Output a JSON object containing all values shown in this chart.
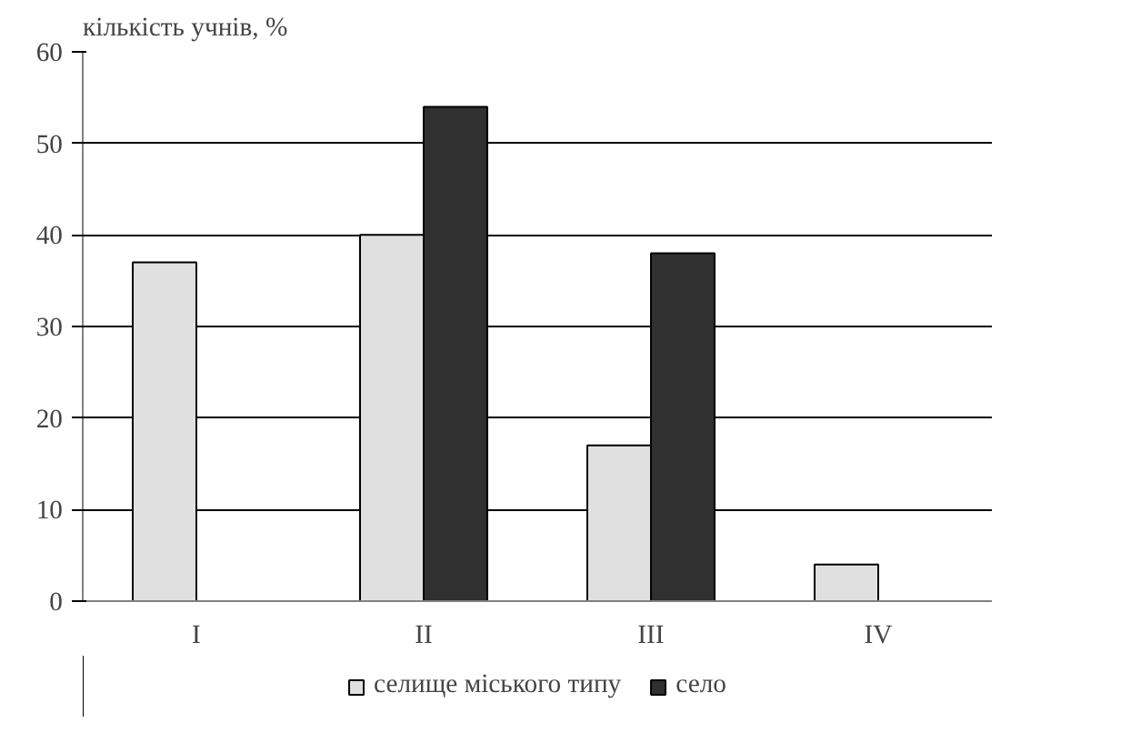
{
  "chart_data": {
    "type": "bar",
    "ylabel": "кількість учнів, %",
    "categories": [
      "I",
      "II",
      "III",
      "IV"
    ],
    "series": [
      {
        "name": "селище міського типу",
        "color": "#e0e0e0",
        "values": [
          37,
          40,
          17,
          4
        ]
      },
      {
        "name": "село",
        "color": "#303030",
        "values": [
          null,
          54,
          38,
          null
        ]
      }
    ],
    "ylim": [
      0,
      60
    ],
    "yticks": [
      0,
      10,
      20,
      30,
      40,
      50,
      60
    ],
    "grid": "y",
    "legend": "bottom"
  }
}
